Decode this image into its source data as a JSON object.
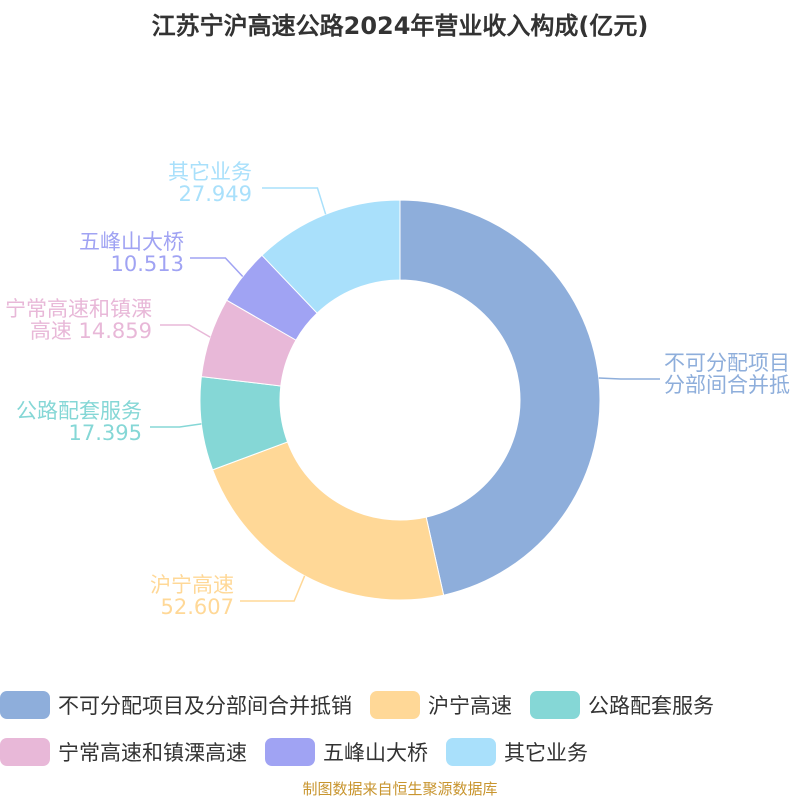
{
  "chart_data": {
    "type": "pie",
    "variant": "donut",
    "title": "江苏宁沪高速公路2024年营业收入构成(亿元)",
    "unit": "亿元",
    "slices": [
      {
        "label": "不可分配项目及分部间合并抵销",
        "callout_lines": [
          "不可分配项目",
          "分部间合并抵"
        ],
        "value": null,
        "color": "#8eaedb"
      },
      {
        "label": "沪宁高速",
        "callout_lines": [
          "沪宁高速",
          "52.607"
        ],
        "value": 52.607,
        "color": "#ffd897"
      },
      {
        "label": "公路配套服务",
        "callout_lines": [
          "公路配套服务",
          "17.395"
        ],
        "value": 17.395,
        "color": "#85d7d6"
      },
      {
        "label": "宁常高速和镇溧高速",
        "callout_lines": [
          "宁常高速和镇溧",
          "高速 14.859"
        ],
        "value": 14.859,
        "color": "#e8b8d8"
      },
      {
        "label": "五峰山大桥",
        "callout_lines": [
          "五峰山大桥",
          "10.513"
        ],
        "value": 10.513,
        "color": "#a0a3f3"
      },
      {
        "label": "其它业务",
        "callout_lines": [
          "其它业务",
          "27.949"
        ],
        "value": 27.949,
        "color": "#a9e0fb"
      }
    ],
    "legend_position": "bottom"
  },
  "legend": {
    "rows": [
      [
        0,
        1,
        2
      ],
      [
        3,
        4,
        5
      ]
    ]
  },
  "footer": {
    "source": "制图数据来自恒生聚源数据库"
  }
}
